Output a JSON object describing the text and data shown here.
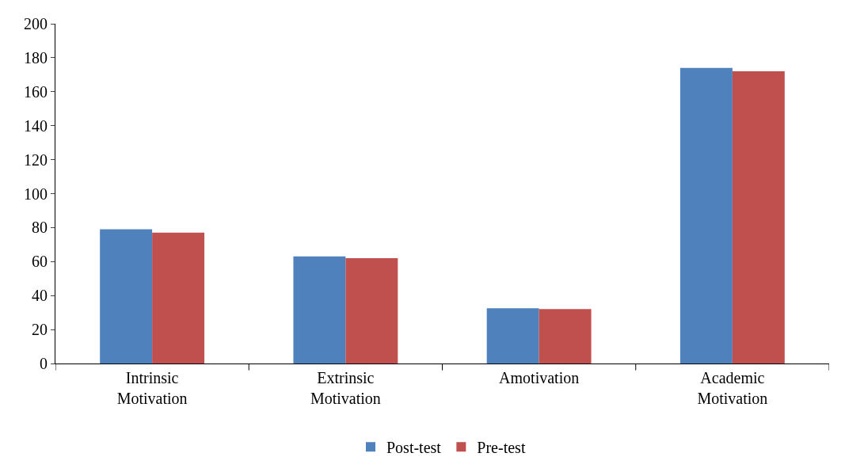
{
  "chart_data": {
    "type": "bar",
    "categories": [
      "Intrinsic Motivation",
      "Extrinsic Motivation",
      "Amotivation",
      "Academic Motivation"
    ],
    "series": [
      {
        "name": "Post-test",
        "color": "#4f81bd",
        "values": [
          79,
          63,
          32.5,
          174
        ]
      },
      {
        "name": "Pre-test",
        "color": "#c0504d",
        "values": [
          77,
          62,
          32,
          172
        ]
      }
    ],
    "ylim": [
      0,
      200
    ],
    "yticks": [
      0,
      20,
      40,
      60,
      80,
      100,
      120,
      140,
      160,
      180,
      200
    ],
    "grid": false,
    "legend": "bottom"
  }
}
